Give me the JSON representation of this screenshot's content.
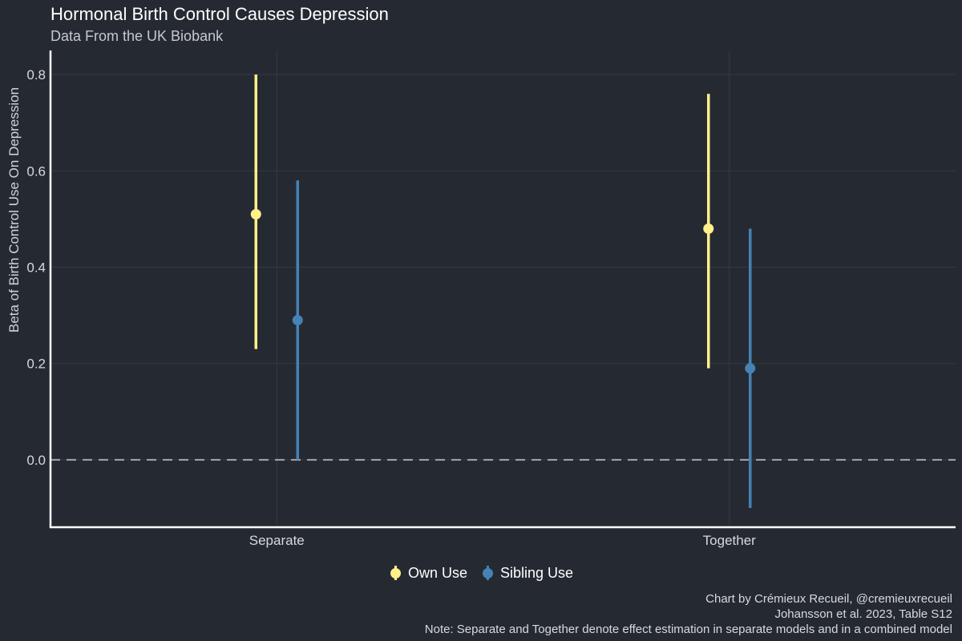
{
  "chart_data": {
    "type": "scatter",
    "title": "Hormonal Birth Control Causes Depression",
    "subtitle": "Data From the UK Biobank",
    "ylabel": "Beta of Birth Control Use On Depression",
    "xlabel": "",
    "categories": [
      "Separate",
      "Together"
    ],
    "ylim": [
      -0.14,
      0.85
    ],
    "yticks": [
      "0.0",
      "0.2",
      "0.4",
      "0.6",
      "0.8"
    ],
    "reference_line": {
      "y": 0,
      "style": "dashed"
    },
    "grid": true,
    "legend_position": "bottom",
    "series": [
      {
        "name": "Own Use",
        "color": "#fff08a",
        "points": [
          {
            "category": "Separate",
            "estimate": 0.51,
            "lower": 0.23,
            "upper": 0.8
          },
          {
            "category": "Together",
            "estimate": 0.48,
            "lower": 0.19,
            "upper": 0.76
          }
        ]
      },
      {
        "name": "Sibling Use",
        "color": "#4682b4",
        "points": [
          {
            "category": "Separate",
            "estimate": 0.29,
            "lower": 0.0,
            "upper": 0.58
          },
          {
            "category": "Together",
            "estimate": 0.19,
            "lower": -0.1,
            "upper": 0.48
          }
        ]
      }
    ]
  },
  "caption": {
    "line1": "Chart by Crémieux Recueil, @cremieuxrecueil",
    "line2": "Johansson et al. 2023, Table S12",
    "line3": "Note: Separate and Together denote effect estimation in separate models and in a combined model"
  },
  "colors": {
    "background": "#252a32",
    "grid": "#343942",
    "axis": "#ffffff",
    "reference_line": "#a4a8ae"
  }
}
